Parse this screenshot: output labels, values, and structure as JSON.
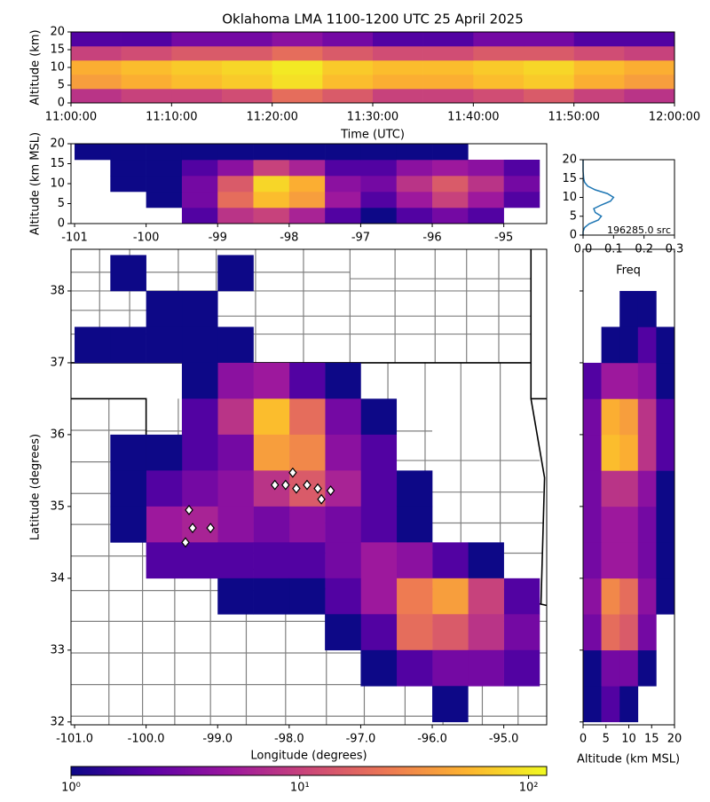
{
  "chart_data": [
    {
      "type": "heatmap",
      "title": "Oklahoma LMA 1100-1200 UTC 25 April 2025",
      "ylabel": "Altitude (km)",
      "xlabel": "Time (UTC)",
      "xticks": [
        "11:00:00",
        "11:10:00",
        "11:20:00",
        "11:30:00",
        "11:40:00",
        "11:50:00",
        "12:00:00"
      ],
      "ylim": [
        0,
        20
      ],
      "yticks": [
        0,
        5,
        10,
        15,
        20
      ],
      "ybins": [
        0,
        4,
        8,
        12,
        16,
        20
      ],
      "z": [
        [
          8,
          10,
          10,
          12,
          20,
          15,
          10,
          10,
          12,
          15,
          10,
          8
        ],
        [
          40,
          50,
          60,
          70,
          90,
          60,
          50,
          50,
          60,
          70,
          50,
          40
        ],
        [
          50,
          60,
          70,
          80,
          100,
          70,
          60,
          60,
          70,
          80,
          60,
          50
        ],
        [
          10,
          12,
          15,
          15,
          20,
          15,
          12,
          12,
          15,
          15,
          12,
          10
        ],
        [
          2,
          2,
          3,
          3,
          4,
          3,
          2,
          2,
          3,
          3,
          2,
          2
        ]
      ]
    },
    {
      "type": "heatmap",
      "ylabel": "Altitude (km MSL)",
      "xlim": [
        -101.05,
        -94.4
      ],
      "xticks": [
        -101,
        -100,
        -99,
        -98,
        -97,
        -96,
        -95
      ],
      "ylim": [
        0,
        20
      ],
      "yticks": [
        0,
        5,
        10,
        15,
        20
      ],
      "xbins": [
        -101,
        -100.5,
        -100,
        -99.5,
        -99,
        -98.5,
        -98,
        -97.5,
        -97,
        -96.5,
        -96,
        -95.5,
        -95,
        -94.5
      ],
      "ybins": [
        0,
        4,
        8,
        12,
        16,
        20
      ],
      "z": [
        [
          null,
          null,
          null,
          2,
          8,
          10,
          6,
          2,
          1,
          2,
          3,
          2,
          null
        ],
        [
          null,
          null,
          1,
          3,
          20,
          60,
          40,
          5,
          2,
          5,
          10,
          5,
          2
        ],
        [
          null,
          1,
          1,
          3,
          15,
          80,
          50,
          4,
          3,
          8,
          15,
          8,
          3
        ],
        [
          null,
          1,
          1,
          2,
          4,
          10,
          6,
          2,
          2,
          4,
          5,
          4,
          2
        ],
        [
          1,
          1,
          1,
          1,
          1,
          1,
          1,
          1,
          1,
          1,
          1,
          null,
          null
        ]
      ]
    },
    {
      "type": "line",
      "xlabel": "Freq",
      "annotation": "196285.0 src",
      "color": "#1f77b4",
      "xlim": [
        0,
        0.3
      ],
      "xticks": [
        {
          "value": 0,
          "label": "0.0"
        },
        {
          "value": 0.1,
          "label": "0.1"
        },
        {
          "value": 0.2,
          "label": "0.2"
        },
        {
          "value": 0.3,
          "label": "0.3"
        }
      ],
      "ylim": [
        0,
        20
      ],
      "yticks": [
        0,
        5,
        10,
        15,
        20
      ],
      "y": [
        0,
        1,
        2,
        3,
        4,
        5,
        6,
        7,
        8,
        9,
        10,
        11,
        12,
        13,
        14,
        15,
        16,
        17,
        18,
        19,
        20
      ],
      "values": [
        0,
        0,
        0.005,
        0.02,
        0.05,
        0.06,
        0.04,
        0.035,
        0.06,
        0.09,
        0.1,
        0.08,
        0.04,
        0.015,
        0.005,
        0.002,
        0.001,
        0,
        0,
        0,
        0
      ]
    },
    {
      "type": "heatmap",
      "xlabel": "Longitude (degrees)",
      "ylabel": "Latitude (degrees)",
      "xlim": [
        -101.05,
        -94.4
      ],
      "xticks": [
        {
          "value": -101,
          "label": "-101.0"
        },
        {
          "value": -100,
          "label": "-100.0"
        },
        {
          "value": -99,
          "label": "-99.0"
        },
        {
          "value": -98,
          "label": "-98.0"
        },
        {
          "value": -97,
          "label": "-97.0"
        },
        {
          "value": -96,
          "label": "-96.0"
        },
        {
          "value": -95,
          "label": "-95.0"
        }
      ],
      "ylim": [
        31.96,
        38.58
      ],
      "yticks": [
        32,
        33,
        34,
        35,
        36,
        37,
        38
      ],
      "xbins": [
        -101,
        -100.5,
        -100,
        -99.5,
        -99,
        -98.5,
        -98,
        -97.5,
        -97,
        -96.5,
        -96,
        -95.5,
        -95,
        -94.5
      ],
      "ybins": [
        32,
        32.5,
        33,
        33.5,
        34,
        34.5,
        35,
        35.5,
        36,
        36.5,
        37,
        37.5,
        38,
        38.5
      ],
      "z": [
        [
          null,
          null,
          null,
          null,
          null,
          null,
          null,
          null,
          null,
          null,
          1,
          null,
          null
        ],
        [
          null,
          null,
          null,
          null,
          null,
          null,
          null,
          null,
          1,
          2,
          3,
          3,
          2
        ],
        [
          null,
          null,
          null,
          null,
          null,
          null,
          null,
          1,
          2,
          20,
          15,
          8,
          3
        ],
        [
          null,
          null,
          null,
          null,
          1,
          1,
          1,
          2,
          5,
          25,
          40,
          10,
          2
        ],
        [
          null,
          null,
          2,
          2,
          2,
          2,
          2,
          3,
          5,
          4,
          2,
          1,
          null
        ],
        [
          null,
          1,
          5,
          6,
          4,
          3,
          4,
          3,
          2,
          1,
          null,
          null,
          null
        ],
        [
          null,
          1,
          2,
          3,
          4,
          8,
          15,
          6,
          2,
          1,
          null,
          null,
          null
        ],
        [
          null,
          1,
          1,
          2,
          3,
          40,
          30,
          4,
          2,
          null,
          null,
          null,
          null
        ],
        [
          null,
          null,
          null,
          2,
          8,
          60,
          20,
          3,
          1,
          null,
          null,
          null,
          null
        ],
        [
          null,
          null,
          null,
          1,
          4,
          5,
          2,
          1,
          null,
          null,
          null,
          null,
          null
        ],
        [
          1,
          1,
          1,
          1,
          1,
          null,
          null,
          null,
          null,
          null,
          null,
          null,
          null
        ],
        [
          null,
          null,
          1,
          1,
          null,
          null,
          null,
          null,
          null,
          null,
          null,
          null,
          null
        ],
        [
          null,
          1,
          null,
          null,
          1,
          null,
          null,
          null,
          null,
          null,
          null,
          null,
          null
        ]
      ],
      "points": {
        "x": [
          -97.95,
          -98.05,
          -97.9,
          -97.75,
          -97.6,
          -97.42,
          -97.55,
          -98.2,
          -99.4,
          -99.35,
          -99.1,
          -99.45
        ],
        "y": [
          35.47,
          35.3,
          35.25,
          35.3,
          35.25,
          35.22,
          35.1,
          35.3,
          34.95,
          34.7,
          34.7,
          34.5
        ]
      }
    },
    {
      "type": "heatmap",
      "xlabel": "Altitude (km MSL)",
      "xlim": [
        0,
        20
      ],
      "xticks": [
        0,
        5,
        10,
        15,
        20
      ],
      "ylim": [
        31.96,
        38.58
      ],
      "xbins": [
        0,
        4,
        8,
        12,
        16,
        20
      ],
      "ybins": [
        32,
        32.5,
        33,
        33.5,
        34,
        34.5,
        35,
        35.5,
        36,
        36.5,
        37,
        37.5,
        38
      ],
      "z": [
        [
          1,
          2,
          1,
          null,
          null
        ],
        [
          1,
          3,
          3,
          1,
          null
        ],
        [
          3,
          20,
          15,
          3,
          null
        ],
        [
          4,
          30,
          20,
          4,
          1
        ],
        [
          3,
          5,
          5,
          3,
          1
        ],
        [
          3,
          5,
          5,
          3,
          1
        ],
        [
          3,
          8,
          8,
          4,
          1
        ],
        [
          3,
          60,
          50,
          8,
          2
        ],
        [
          3,
          50,
          40,
          8,
          2
        ],
        [
          2,
          5,
          5,
          4,
          1
        ],
        [
          null,
          1,
          1,
          2,
          1
        ],
        [
          null,
          null,
          1,
          1,
          null
        ]
      ]
    },
    {
      "type": "colorbar",
      "log": true,
      "clim": [
        1,
        120
      ],
      "colors": [
        "#0d0887",
        "#5c01a6",
        "#9c179e",
        "#cc4778",
        "#ed7953",
        "#fdb42f",
        "#f0f921"
      ],
      "ticks": [
        {
          "value": 1,
          "label": "10⁰"
        },
        {
          "value": 10,
          "label": "10¹"
        },
        {
          "value": 100,
          "label": "10²"
        }
      ]
    }
  ]
}
